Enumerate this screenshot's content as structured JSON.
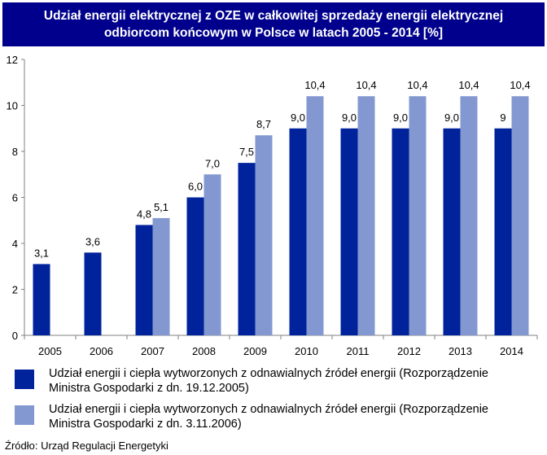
{
  "title": {
    "line1": "Udział energii elektrycznej z OZE w całkowitej sprzedaży energii elektrycznej",
    "line2": "odbiorcom końcowym w Polsce w latach 2005 - 2014 [%]"
  },
  "legend": [
    {
      "line1": "Udział energii i ciepła wytworzonych z odnawialnych źródeł energii (Rozporządzenie",
      "line2": "Ministra Gospodarki z dn. 19.12.2005)",
      "color": "#00239c"
    },
    {
      "line1": "Udział energii i ciepła wytworzonych z odnawialnych źródeł energii (Rozporządzenie",
      "line2": "Ministra Gospodarki z dn. 3.11.2006)",
      "color": "#8398d0"
    }
  ],
  "source": "Źródło: Urząd Regulacji Energetyki",
  "colors": {
    "title_bg": "#00008c",
    "series1": "#00239c",
    "series2": "#8398d0"
  },
  "chart_data": {
    "type": "bar",
    "categories": [
      "2005",
      "2006",
      "2007",
      "2008",
      "2009",
      "2010",
      "2011",
      "2012",
      "2013",
      "2014"
    ],
    "series": [
      {
        "values": [
          3.1,
          3.6,
          4.8,
          6.0,
          7.5,
          9.0,
          9.0,
          9.0,
          9.0,
          9.0
        ],
        "labels": [
          "3,1",
          "3,6",
          "4,8",
          "6,0",
          "7,5",
          "9,0",
          "9,0",
          "9,0",
          "9,0",
          "9"
        ]
      },
      {
        "values": [
          null,
          null,
          5.1,
          7.0,
          8.7,
          10.4,
          10.4,
          10.4,
          10.4,
          10.4
        ],
        "labels": [
          "",
          "",
          "5,1",
          "7,0",
          "8,7",
          "10,4",
          "10,4",
          "10,4",
          "10,4",
          "10,4"
        ]
      }
    ],
    "ylim": [
      0,
      12
    ],
    "yticks": [
      "0",
      "2",
      "4",
      "6",
      "8",
      "10",
      "12"
    ],
    "grid": false
  }
}
